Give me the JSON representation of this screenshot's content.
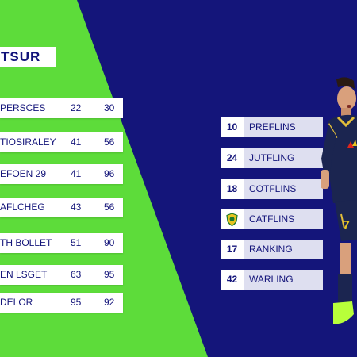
{
  "title": "TSUR",
  "left_table": [
    {
      "name": "PERSCES",
      "v1": "22",
      "v2": "30"
    },
    {
      "name": "TIOSIRALEY",
      "v1": "41",
      "v2": "56"
    },
    {
      "name": "EFOEN 29",
      "v1": "41",
      "v2": "96"
    },
    {
      "name": "AFLCHEG",
      "v1": "43",
      "v2": "56"
    },
    {
      "name": "TH BOLLET",
      "v1": "51",
      "v2": "90"
    },
    {
      "name": "EN LSGET",
      "v1": "63",
      "v2": "95"
    },
    {
      "name": "DELOR",
      "v1": "95",
      "v2": "92"
    }
  ],
  "right_table": [
    {
      "num": "10",
      "label": "PREFLINS"
    },
    {
      "num": "24",
      "label": "JUTFLING"
    },
    {
      "num": "18",
      "label": "COTFLINS"
    },
    {
      "num": "",
      "label": "CATFLINS",
      "icon": "club-crest-icon"
    },
    {
      "num": "17",
      "label": "RANKING"
    },
    {
      "num": "42",
      "label": "WARLING"
    }
  ],
  "player": {
    "jersey_number": "7"
  },
  "colors": {
    "background": "#14157a",
    "accent_green": "#5ddc3a",
    "row_white": "#ffffff",
    "row_lavender": "#dedff0"
  }
}
